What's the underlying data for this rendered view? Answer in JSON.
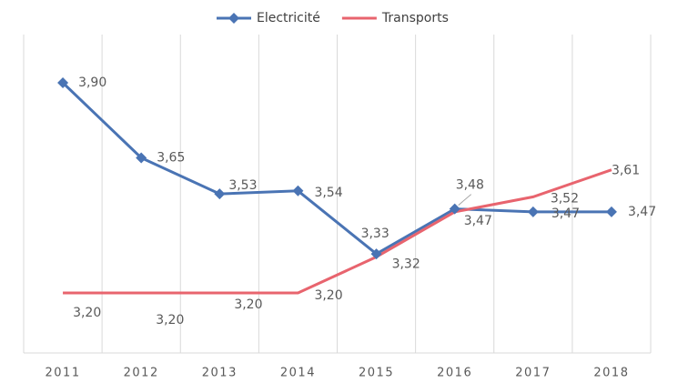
{
  "chart_data": {
    "type": "line",
    "categories": [
      "2011",
      "2012",
      "2013",
      "2014",
      "2015",
      "2016",
      "2017",
      "2018"
    ],
    "series": [
      {
        "name": "Electricité",
        "color": "#4a74b4",
        "marker": "diamond",
        "values": [
          3.9,
          3.65,
          3.53,
          3.54,
          3.33,
          3.48,
          3.47,
          3.47
        ],
        "value_labels": [
          "3,90",
          "3,65",
          "3,53",
          "3,54",
          "3,33",
          "3,48",
          "3,47",
          "3,47"
        ]
      },
      {
        "name": "Transports",
        "color": "#e8646e",
        "values": [
          3.2,
          3.2,
          3.2,
          3.2,
          3.32,
          3.47,
          3.52,
          3.61
        ],
        "value_labels": [
          "3,20",
          "3,20",
          "3,20",
          "3,20",
          "3,32",
          "3,47",
          "3,52",
          "3,61"
        ]
      }
    ],
    "ylim": [
      3,
      4
    ],
    "legend": "top"
  }
}
